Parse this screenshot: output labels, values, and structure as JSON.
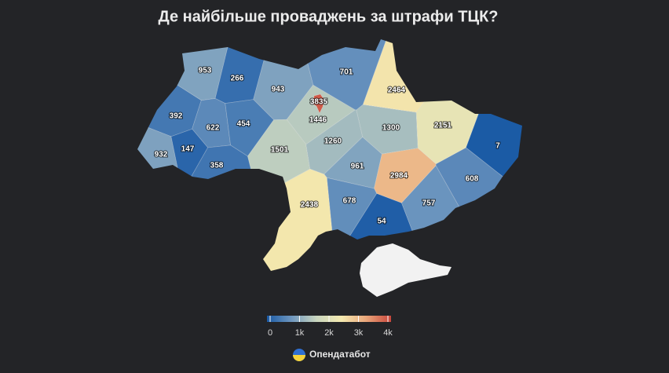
{
  "title": "Де найбільше проваджень за штрафи ТЦК?",
  "map": {
    "type": "choropleth",
    "values": [
      953,
      266,
      943,
      3835,
      1446,
      701,
      2464,
      392,
      622,
      454,
      1300,
      2151,
      932,
      147,
      358,
      1501,
      1260,
      7,
      961,
      2984,
      608,
      2438,
      678,
      757,
      54
    ],
    "colorscale": {
      "colors": [
        "#1a5aa5",
        "#6f97bf",
        "#c9d6bf",
        "#f4eab0",
        "#e9a57a",
        "#c8473c"
      ],
      "range": [
        0,
        4000
      ],
      "ticks": [
        0,
        {
          "value": 1000,
          "label": "1k"
        },
        {
          "value": 2000,
          "label": "2k"
        },
        {
          "value": 3000,
          "label": "3k"
        },
        {
          "value": 4000,
          "label": "4k"
        }
      ]
    }
  },
  "source": "Опендатабот"
}
